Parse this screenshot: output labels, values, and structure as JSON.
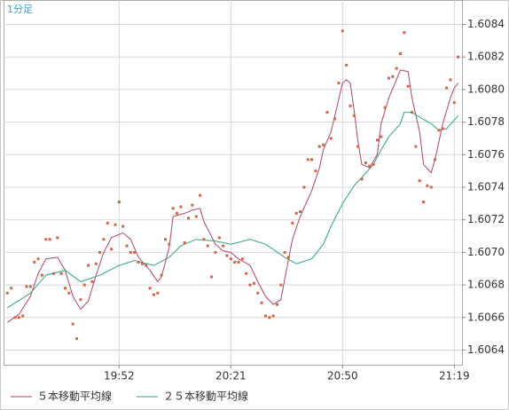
{
  "chart_data": {
    "type": "line",
    "period_label": "1分足",
    "xlim": [
      "19:22",
      "21:21"
    ],
    "xticks": [
      "19:52",
      "20:21",
      "20:50",
      "21:19"
    ],
    "ylim": [
      1.60631,
      1.60855
    ],
    "yticks": [
      1.6064,
      1.6066,
      1.6068,
      {
        "value": 1.607,
        "label": "1.6070"
      },
      1.6072,
      1.6074,
      1.6076,
      1.6078,
      {
        "value": 1.608,
        "label": "1.6080"
      },
      1.6082,
      1.6084
    ],
    "grid": true,
    "legend": "bottom",
    "points": {
      "color": "#d0674a",
      "x": [
        "19:23",
        "19:24",
        "19:25",
        "19:26",
        "19:27",
        "19:28",
        "19:29",
        "19:30",
        "19:31",
        "19:32",
        "19:33",
        "19:34",
        "19:35",
        "19:36",
        "19:37",
        "19:38",
        "19:39",
        "19:40",
        "19:41",
        "19:42",
        "19:43",
        "19:44",
        "19:45",
        "19:46",
        "19:47",
        "19:48",
        "19:49",
        "19:50",
        "19:51",
        "19:52",
        "19:53",
        "19:54",
        "19:55",
        "19:56",
        "19:57",
        "19:58",
        "19:59",
        "20:00",
        "20:01",
        "20:02",
        "20:03",
        "20:04",
        "20:05",
        "20:06",
        "20:07",
        "20:08",
        "20:09",
        "20:10",
        "20:11",
        "20:12",
        "20:13",
        "20:14",
        "20:15",
        "20:16",
        "20:17",
        "20:18",
        "20:19",
        "20:20",
        "20:21",
        "20:22",
        "20:23",
        "20:24",
        "20:25",
        "20:26",
        "20:27",
        "20:28",
        "20:29",
        "20:30",
        "20:31",
        "20:32",
        "20:33",
        "20:34",
        "20:35",
        "20:36",
        "20:37",
        "20:38",
        "20:39",
        "20:40",
        "20:41",
        "20:42",
        "20:43",
        "20:44",
        "20:45",
        "20:46",
        "20:47",
        "20:48",
        "20:49",
        "20:50",
        "20:51",
        "20:52",
        "20:53",
        "20:54",
        "20:55",
        "20:56",
        "20:57",
        "20:58",
        "20:59",
        "21:00",
        "21:01",
        "21:02",
        "21:03",
        "21:04",
        "21:05",
        "21:06",
        "21:07",
        "21:08",
        "21:09",
        "21:10",
        "21:11",
        "21:12",
        "21:13",
        "21:14",
        "21:15",
        "21:16",
        "21:17",
        "21:18",
        "21:19",
        "21:20"
      ],
      "values": [
        1.60675,
        1.60678,
        1.6066,
        1.6066,
        1.60661,
        1.60679,
        1.60679,
        1.60694,
        1.60696,
        1.60686,
        1.60708,
        1.60708,
        1.60687,
        1.60709,
        1.60687,
        1.60678,
        1.60675,
        1.60656,
        1.60647,
        1.60671,
        1.6068,
        1.60692,
        1.60682,
        1.60693,
        1.607,
        1.60708,
        1.60718,
        1.60702,
        1.60717,
        1.60731,
        1.60716,
        1.60704,
        1.607,
        1.607,
        1.60694,
        1.60693,
        1.60692,
        1.60678,
        1.60674,
        1.60675,
        1.60686,
        1.60708,
        1.60705,
        1.60727,
        1.60724,
        1.60728,
        1.60706,
        1.60721,
        1.60729,
        1.60722,
        1.60735,
        1.60708,
        1.60704,
        1.60685,
        1.607,
        1.60709,
        1.60704,
        1.60698,
        1.60696,
        1.60694,
        1.60694,
        1.60696,
        1.60687,
        1.6068,
        1.60681,
        1.60675,
        1.60669,
        1.60661,
        1.6066,
        1.60661,
        1.60668,
        1.6068,
        1.607,
        1.60697,
        1.60718,
        1.60724,
        1.60725,
        1.6074,
        1.60757,
        1.60757,
        1.6075,
        1.60765,
        1.60766,
        1.60786,
        1.6077,
        1.60782,
        1.60804,
        1.60836,
        1.60815,
        1.6079,
        1.60784,
        1.60765,
        1.60745,
        1.60755,
        1.60753,
        1.60754,
        1.60769,
        1.60771,
        1.60789,
        1.60807,
        1.60808,
        1.60813,
        1.60822,
        1.60835,
        1.60802,
        1.60786,
        1.60765,
        1.60744,
        1.60731,
        1.60741,
        1.6074,
        1.60757,
        1.60775,
        1.60776,
        1.60801,
        1.60806,
        1.60792,
        1.6082
      ]
    },
    "series": [
      {
        "name": "５本移動平均線",
        "color": "#b0426e",
        "x": [
          "19:23",
          "19:26",
          "19:29",
          "19:31",
          "19:33",
          "19:36",
          "19:38",
          "19:40",
          "19:42",
          "19:44",
          "19:46",
          "19:48",
          "19:50",
          "19:53",
          "19:55",
          "19:57",
          "20:00",
          "20:02",
          "20:03",
          "20:05",
          "20:06",
          "20:09",
          "20:11",
          "20:13",
          "20:14",
          "20:17",
          "20:19",
          "20:21",
          "20:23",
          "20:26",
          "20:28",
          "20:30",
          "20:32",
          "20:34",
          "20:35",
          "20:37",
          "20:39",
          "20:42",
          "20:44",
          "20:45",
          "20:47",
          "20:48",
          "20:50",
          "20:51",
          "20:52",
          "20:53",
          "20:54",
          "20:55",
          "20:57",
          "20:59",
          "21:00",
          "21:02",
          "21:04",
          "21:05",
          "21:07",
          "21:08",
          "21:10",
          "21:11",
          "21:13",
          "21:14",
          "21:16",
          "21:18",
          "21:19",
          "21:20"
        ],
        "values": [
          1.60657,
          1.60662,
          1.60673,
          1.60687,
          1.60696,
          1.60697,
          1.60689,
          1.60673,
          1.60665,
          1.6067,
          1.60686,
          1.607,
          1.60709,
          1.60712,
          1.60708,
          1.60697,
          1.60689,
          1.60682,
          1.60685,
          1.60703,
          1.60722,
          1.60724,
          1.60726,
          1.60727,
          1.60719,
          1.60705,
          1.60701,
          1.607,
          1.60696,
          1.60692,
          1.60682,
          1.60673,
          1.60668,
          1.60671,
          1.60684,
          1.60708,
          1.60722,
          1.60738,
          1.60752,
          1.60763,
          1.60774,
          1.60784,
          1.60804,
          1.60806,
          1.60804,
          1.60787,
          1.60768,
          1.60754,
          1.60752,
          1.6076,
          1.60779,
          1.60795,
          1.60806,
          1.60812,
          1.60811,
          1.60795,
          1.60774,
          1.60754,
          1.60749,
          1.60757,
          1.60779,
          1.60795,
          1.60801,
          1.60804
        ]
      },
      {
        "name": "２５本移動平均線",
        "color": "#2fa57c",
        "x": [
          "19:23",
          "19:29",
          "19:33",
          "19:38",
          "19:42",
          "19:47",
          "19:52",
          "19:56",
          "20:01",
          "20:05",
          "20:08",
          "20:12",
          "20:17",
          "20:21",
          "20:26",
          "20:30",
          "20:35",
          "20:38",
          "20:42",
          "20:45",
          "20:47",
          "20:50",
          "20:53",
          "20:55",
          "20:58",
          "21:00",
          "21:02",
          "21:05",
          "21:06",
          "21:08",
          "21:10",
          "21:13",
          "21:15",
          "21:17",
          "21:20"
        ],
        "values": [
          1.60666,
          1.60675,
          1.60686,
          1.60689,
          1.60682,
          1.60686,
          1.60692,
          1.60695,
          1.60692,
          1.60697,
          1.60704,
          1.60708,
          1.60707,
          1.60705,
          1.60708,
          1.60705,
          1.60697,
          1.60693,
          1.60696,
          1.60705,
          1.60716,
          1.6073,
          1.60741,
          1.60746,
          1.60754,
          1.60763,
          1.60771,
          1.60779,
          1.60786,
          1.60786,
          1.60783,
          1.60779,
          1.60775,
          1.60776,
          1.60784
        ]
      }
    ]
  }
}
